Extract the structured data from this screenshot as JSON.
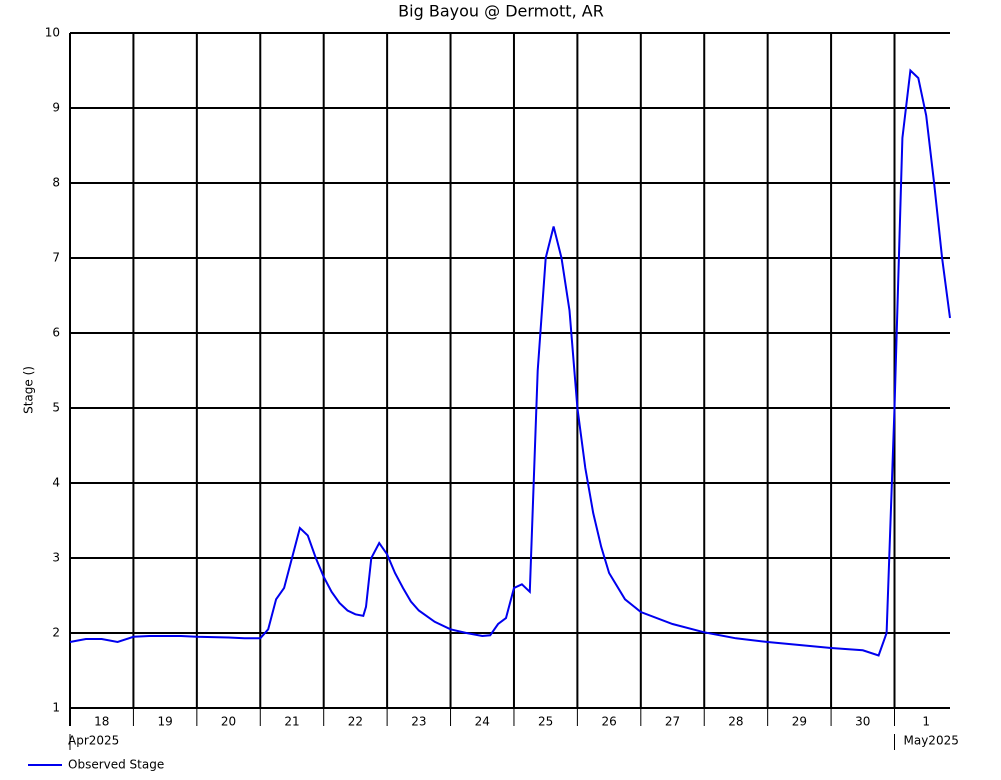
{
  "chart_data": {
    "type": "line",
    "title": "Big Bayou @ Dermott, AR",
    "y_label": "Stage ()",
    "x": [
      "2025-04-18T00:00",
      "2025-04-18T03:00",
      "2025-04-18T06:00",
      "2025-04-18T12:00",
      "2025-04-18T18:00",
      "2025-04-19T00:00",
      "2025-04-19T06:00",
      "2025-04-19T12:00",
      "2025-04-19T18:00",
      "2025-04-20T00:00",
      "2025-04-20T12:00",
      "2025-04-20T18:00",
      "2025-04-21T00:00",
      "2025-04-21T03:00",
      "2025-04-21T06:00",
      "2025-04-21T09:00",
      "2025-04-21T12:00",
      "2025-04-21T15:00",
      "2025-04-21T18:00",
      "2025-04-21T21:00",
      "2025-04-22T00:00",
      "2025-04-22T03:00",
      "2025-04-22T06:00",
      "2025-04-22T09:00",
      "2025-04-22T12:00",
      "2025-04-22T15:00",
      "2025-04-22T16:00",
      "2025-04-22T18:00",
      "2025-04-22T21:00",
      "2025-04-23T00:00",
      "2025-04-23T03:00",
      "2025-04-23T06:00",
      "2025-04-23T09:00",
      "2025-04-23T12:00",
      "2025-04-23T18:00",
      "2025-04-24T00:00",
      "2025-04-24T06:00",
      "2025-04-24T12:00",
      "2025-04-24T15:00",
      "2025-04-24T18:00",
      "2025-04-24T21:00",
      "2025-04-25T00:00",
      "2025-04-25T03:00",
      "2025-04-25T06:00",
      "2025-04-25T09:00",
      "2025-04-25T12:00",
      "2025-04-25T15:00",
      "2025-04-25T18:00",
      "2025-04-25T21:00",
      "2025-04-26T00:00",
      "2025-04-26T03:00",
      "2025-04-26T06:00",
      "2025-04-26T09:00",
      "2025-04-26T12:00",
      "2025-04-26T18:00",
      "2025-04-27T00:00",
      "2025-04-27T12:00",
      "2025-04-28T00:00",
      "2025-04-28T12:00",
      "2025-04-29T00:00",
      "2025-04-29T12:00",
      "2025-04-30T00:00",
      "2025-04-30T12:00",
      "2025-04-30T18:00",
      "2025-04-30T21:00",
      "2025-05-01T00:00",
      "2025-05-01T03:00",
      "2025-05-01T06:00",
      "2025-05-01T09:00",
      "2025-05-01T12:00",
      "2025-05-01T15:00",
      "2025-05-01T18:00",
      "2025-05-01T21:00"
    ],
    "series": [
      {
        "name": "Observed Stage",
        "color": "#0000ee",
        "values": [
          1.88,
          1.9,
          1.92,
          1.92,
          1.88,
          1.95,
          1.96,
          1.96,
          1.96,
          1.95,
          1.94,
          1.93,
          1.93,
          2.05,
          2.45,
          2.6,
          3.0,
          3.4,
          3.3,
          3.0,
          2.75,
          2.55,
          2.4,
          2.3,
          2.25,
          2.23,
          2.35,
          3.0,
          3.2,
          3.05,
          2.8,
          2.6,
          2.42,
          2.3,
          2.15,
          2.05,
          2.0,
          1.96,
          1.97,
          2.12,
          2.2,
          2.6,
          2.65,
          2.55,
          5.5,
          7.0,
          7.42,
          7.0,
          6.3,
          5.0,
          4.2,
          3.6,
          3.15,
          2.8,
          2.45,
          2.28,
          2.12,
          2.01,
          1.93,
          1.88,
          1.84,
          1.8,
          1.77,
          1.7,
          2.0,
          5.0,
          8.6,
          9.5,
          9.4,
          8.9,
          8.0,
          7.0,
          6.2
        ]
      }
    ],
    "xlim": [
      "2025-04-18T00:00",
      "2025-05-01T21:00"
    ],
    "xticks": [
      {
        "value": "2025-04-18T00:00",
        "label": "18"
      },
      {
        "value": "2025-04-19T00:00",
        "label": "19"
      },
      {
        "value": "2025-04-20T00:00",
        "label": "20"
      },
      {
        "value": "2025-04-21T00:00",
        "label": "21"
      },
      {
        "value": "2025-04-22T00:00",
        "label": "22"
      },
      {
        "value": "2025-04-23T00:00",
        "label": "23"
      },
      {
        "value": "2025-04-24T00:00",
        "label": "24"
      },
      {
        "value": "2025-04-25T00:00",
        "label": "25"
      },
      {
        "value": "2025-04-26T00:00",
        "label": "26"
      },
      {
        "value": "2025-04-27T00:00",
        "label": "27"
      },
      {
        "value": "2025-04-28T00:00",
        "label": "28"
      },
      {
        "value": "2025-04-29T00:00",
        "label": "29"
      },
      {
        "value": "2025-04-30T00:00",
        "label": "30"
      },
      {
        "value": "2025-05-01T00:00",
        "label": "1"
      }
    ],
    "month_labels": [
      {
        "value": "2025-04-18T00:00",
        "label": "Apr2025"
      },
      {
        "value": "2025-05-01T00:00",
        "label": "May2025"
      }
    ],
    "ylim": [
      1,
      10
    ],
    "yticks": [
      1,
      2,
      3,
      4,
      5,
      6,
      7,
      8,
      9,
      10
    ],
    "grid": true
  }
}
